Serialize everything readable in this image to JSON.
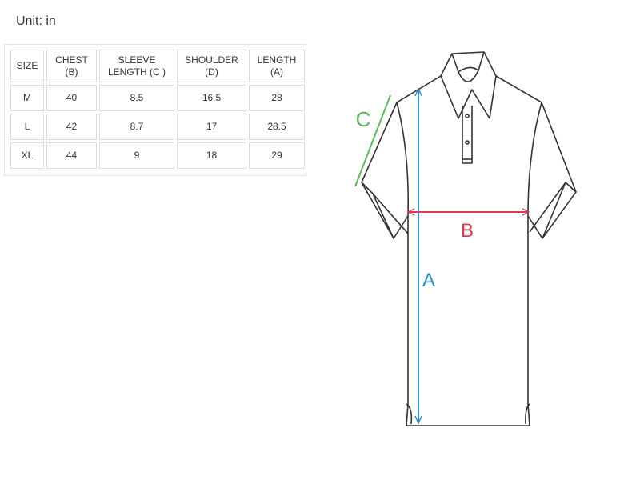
{
  "unit_label": "Unit: in",
  "table": {
    "headers": [
      [
        "SIZE",
        ""
      ],
      [
        "CHEST",
        "(B)"
      ],
      [
        "SLEEVE",
        "LENGTH (C )"
      ],
      [
        "SHOULDER",
        "(D)"
      ],
      [
        "LENGTH",
        "(A)"
      ]
    ],
    "rows": [
      [
        "M",
        "40",
        "8.5",
        "16.5",
        "28"
      ],
      [
        "L",
        "42",
        "8.7",
        "17",
        "28.5"
      ],
      [
        "XL",
        "44",
        "9",
        "18",
        "29"
      ]
    ]
  },
  "diagram": {
    "labels": {
      "a": "A",
      "b": "B",
      "c": "C"
    },
    "colors": {
      "a": "#2a8fc0",
      "b": "#d04050",
      "c": "#5cb85c",
      "outline": "#333333"
    }
  }
}
